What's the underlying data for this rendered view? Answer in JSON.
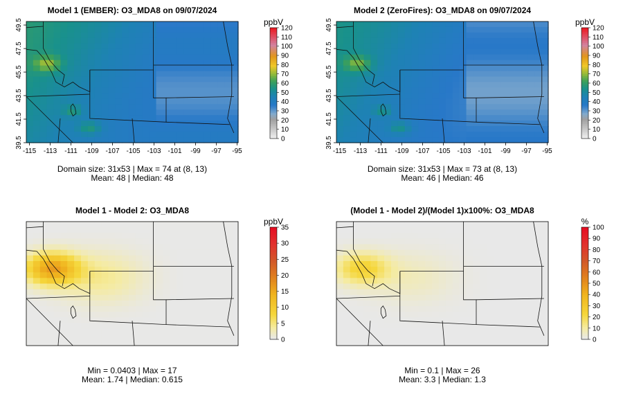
{
  "figure": {
    "panels": [
      {
        "id": "model1",
        "title": "Model 1 (EMBER): O3_MDA8 on 09/07/2024",
        "stats_line1": "Domain size: 31x53 | Max = 74 at (8, 13)",
        "stats_line2": "Mean: 48 |  Median: 48",
        "legend_unit": "ppbV",
        "show_axes": true
      },
      {
        "id": "model2",
        "title": "Model 2 (ZeroFires): O3_MDA8 on 09/07/2024",
        "stats_line1": "Domain size: 31x53 | Max = 73 at (8, 13)",
        "stats_line2": "Mean: 46 |  Median: 46",
        "legend_unit": "ppbV",
        "show_axes": true
      },
      {
        "id": "diff",
        "title": "Model 1 - Model 2: O3_MDA8",
        "stats_line1": "Min = 0.0403 | Max = 17",
        "stats_line2": "Mean: 1.74 |  Median: 0.615",
        "legend_unit": "ppbV",
        "show_axes": false
      },
      {
        "id": "pct",
        "title": "(Model 1 - Model 2)/(Model 1)x100%: O3_MDA8",
        "stats_line1": "Min = 0.1 | Max = 26",
        "stats_line2": "Mean: 3.3 |  Median: 1.3",
        "legend_unit": "%",
        "show_axes": false
      }
    ]
  },
  "chart_data": [
    {
      "type": "heatmap",
      "title": "Model 1 (EMBER): O3_MDA8 on 09/07/2024",
      "x_ticks": [
        "-115",
        "-113",
        "-111",
        "-109",
        "-107",
        "-105",
        "-103",
        "-101",
        "-99",
        "-97",
        "-95"
      ],
      "y_ticks": [
        "39.5",
        "41.5",
        "43.5",
        "45.5",
        "47.5",
        "49.5"
      ],
      "xlim": [
        -115.3,
        -94.9
      ],
      "ylim": [
        39.5,
        49.8
      ],
      "grid_size": "31x53",
      "max": 74,
      "max_at": [
        8,
        13
      ],
      "mean": 48,
      "median": 48,
      "colorbar": {
        "unit": "ppbV",
        "min": 0,
        "max": 120,
        "ticks": [
          "0",
          "10",
          "20",
          "30",
          "40",
          "50",
          "60",
          "70",
          "80",
          "90",
          "100",
          "110",
          "120"
        ]
      }
    },
    {
      "type": "heatmap",
      "title": "Model 2 (ZeroFires): O3_MDA8 on 09/07/2024",
      "x_ticks": [
        "-115",
        "-113",
        "-111",
        "-109",
        "-107",
        "-105",
        "-103",
        "-101",
        "-99",
        "-97",
        "-95"
      ],
      "y_ticks": [
        "39.5",
        "41.5",
        "43.5",
        "45.5",
        "47.5",
        "49.5"
      ],
      "xlim": [
        -115.3,
        -94.9
      ],
      "ylim": [
        39.5,
        49.8
      ],
      "grid_size": "31x53",
      "max": 73,
      "max_at": [
        8,
        13
      ],
      "mean": 46,
      "median": 46,
      "colorbar": {
        "unit": "ppbV",
        "min": 0,
        "max": 120,
        "ticks": [
          "0",
          "10",
          "20",
          "30",
          "40",
          "50",
          "60",
          "70",
          "80",
          "90",
          "100",
          "110",
          "120"
        ]
      }
    },
    {
      "type": "heatmap",
      "title": "Model 1 - Model 2: O3_MDA8",
      "min": 0.0403,
      "max": 17,
      "mean": 1.74,
      "median": 0.615,
      "colorbar": {
        "unit": "ppbV",
        "min": 0,
        "max": 35,
        "ticks": [
          "0",
          "5",
          "10",
          "15",
          "20",
          "25",
          "30",
          "35"
        ]
      }
    },
    {
      "type": "heatmap",
      "title": "(Model 1 - Model 2)/(Model 1)x100%: O3_MDA8",
      "min": 0.1,
      "max": 26,
      "mean": 3.3,
      "median": 1.3,
      "colorbar": {
        "unit": "%",
        "min": 0,
        "max": 100,
        "ticks": [
          "0",
          "10",
          "20",
          "30",
          "40",
          "50",
          "60",
          "70",
          "80",
          "90",
          "100"
        ]
      }
    }
  ]
}
